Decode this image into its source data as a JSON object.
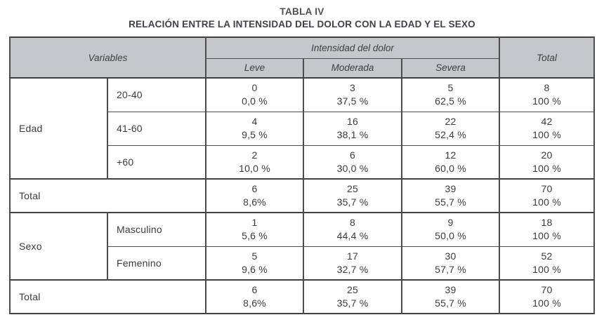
{
  "title": "TABLA IV",
  "subtitle": "RELACIÓN ENTRE LA INTENSIDAD DEL DOLOR CON LA EDAD Y EL SEXO",
  "colors": {
    "header_bg": "#c6c7ca"
  },
  "header": {
    "variables": "Variables",
    "intensity": "Intensidad del dolor",
    "levels": [
      "Leve",
      "Moderada",
      "Severa"
    ],
    "total": "Total"
  },
  "sections": [
    {
      "group": "Edad",
      "rows": [
        {
          "label": "20-40",
          "cells": [
            {
              "n": "0",
              "p": "0,0 %"
            },
            {
              "n": "3",
              "p": "37,5 %"
            },
            {
              "n": "5",
              "p": "62,5 %"
            },
            {
              "n": "8",
              "p": "100 %"
            }
          ]
        },
        {
          "label": "41-60",
          "cells": [
            {
              "n": "4",
              "p": "9,5 %"
            },
            {
              "n": "16",
              "p": "38,1 %"
            },
            {
              "n": "22",
              "p": "52,4 %"
            },
            {
              "n": "42",
              "p": "100 %"
            }
          ]
        },
        {
          "label": "+60",
          "cells": [
            {
              "n": "2",
              "p": "10,0 %"
            },
            {
              "n": "6",
              "p": "30,0 %"
            },
            {
              "n": "12",
              "p": "60,0 %"
            },
            {
              "n": "20",
              "p": "100 %"
            }
          ]
        }
      ]
    },
    {
      "group": "Sexo",
      "rows": [
        {
          "label": "Masculino",
          "cells": [
            {
              "n": "1",
              "p": "5,6 %"
            },
            {
              "n": "8",
              "p": "44,4 %"
            },
            {
              "n": "9",
              "p": "50,0 %"
            },
            {
              "n": "18",
              "p": "100 %"
            }
          ]
        },
        {
          "label": "Femenino",
          "cells": [
            {
              "n": "5",
              "p": "9,6 %"
            },
            {
              "n": "17",
              "p": "32,7 %"
            },
            {
              "n": "30",
              "p": "57,7 %"
            },
            {
              "n": "52",
              "p": "100 %"
            }
          ]
        }
      ]
    }
  ],
  "totals": [
    {
      "label": "Total",
      "cells": [
        {
          "n": "6",
          "p": "8,6%"
        },
        {
          "n": "25",
          "p": "35,7 %"
        },
        {
          "n": "39",
          "p": "55,7 %"
        },
        {
          "n": "70",
          "p": "100 %"
        }
      ]
    },
    {
      "label": "Total",
      "cells": [
        {
          "n": "6",
          "p": "8,6%"
        },
        {
          "n": "25",
          "p": "35,7 %"
        },
        {
          "n": "39",
          "p": "55,7 %"
        },
        {
          "n": "70",
          "p": "100 %"
        }
      ]
    }
  ]
}
